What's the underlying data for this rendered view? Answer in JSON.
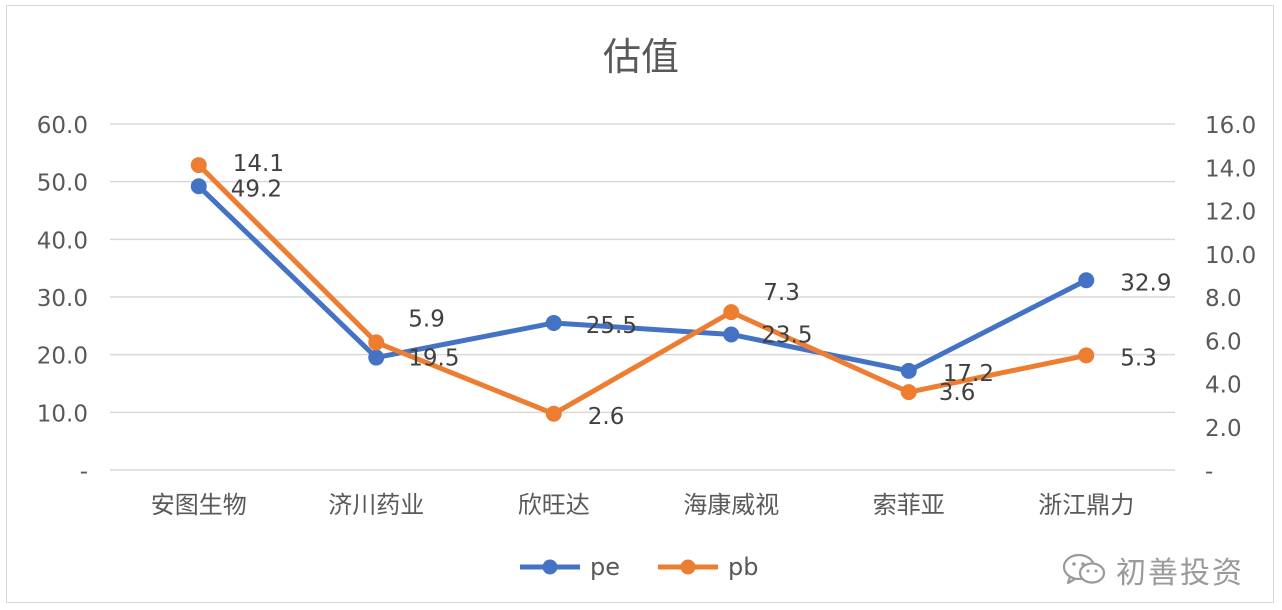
{
  "chart_data": {
    "type": "line",
    "title": "估值",
    "categories": [
      "安图生物",
      "济川药业",
      "欣旺达",
      "海康威视",
      "索菲亚",
      "浙江鼎力"
    ],
    "series": [
      {
        "name": "pe",
        "axis": "left",
        "color": "#4472c4",
        "values": [
          49.2,
          19.5,
          25.5,
          23.5,
          17.2,
          32.9
        ]
      },
      {
        "name": "pb",
        "axis": "right",
        "color": "#ed7d31",
        "values": [
          14.1,
          5.9,
          2.6,
          7.3,
          3.6,
          5.3
        ]
      }
    ],
    "y_left": {
      "ylim": [
        0,
        60
      ],
      "ticks": [
        "-",
        "10.0",
        "20.0",
        "30.0",
        "40.0",
        "50.0",
        "60.0"
      ]
    },
    "y_right": {
      "ylim": [
        0,
        16
      ],
      "ticks": [
        "-",
        "2.0",
        "4.0",
        "6.0",
        "8.0",
        "10.0",
        "12.0",
        "14.0",
        "16.0"
      ]
    },
    "grid": true,
    "legend": "bottom",
    "data_labels": true
  },
  "watermark": {
    "text": "初善投资"
  }
}
